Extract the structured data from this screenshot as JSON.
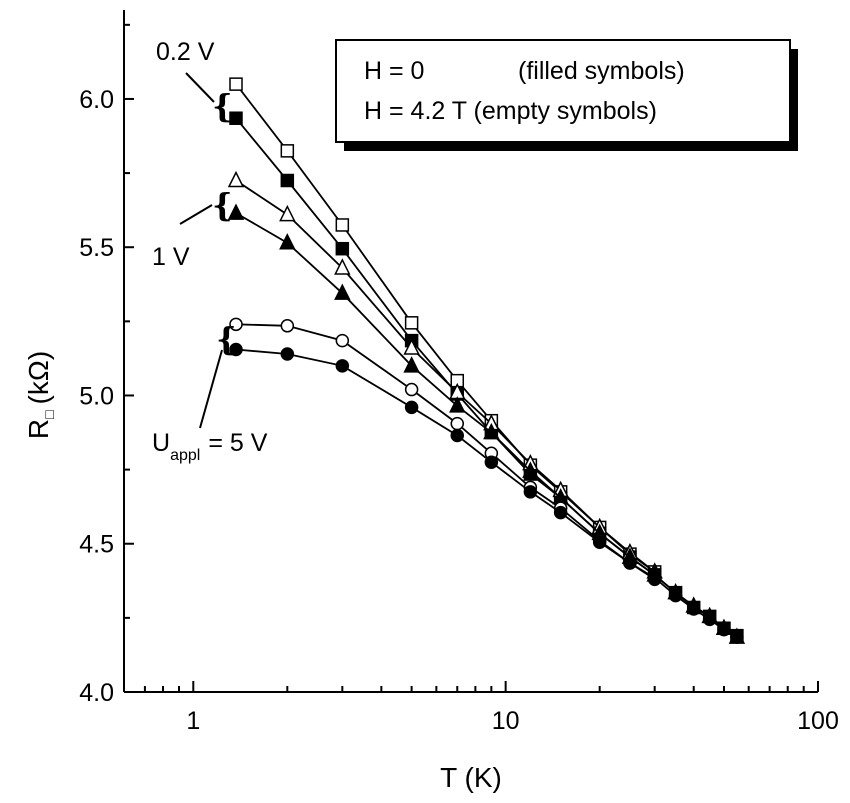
{
  "chart_data": {
    "type": "line",
    "title": "",
    "x_scale": "log",
    "xlim": [
      0.6,
      100
    ],
    "ylim": [
      4.0,
      6.3
    ],
    "xlabel": "T (K)",
    "ylabel_main": "R",
    "ylabel_sub": "□",
    "ylabel_unit": "(kΩ)",
    "x_ticks": [
      {
        "value": 1,
        "label": "1"
      },
      {
        "value": 10,
        "label": "10"
      },
      {
        "value": 100,
        "label": "100"
      }
    ],
    "y_ticks": [
      {
        "value": 4.0,
        "label": "4.0"
      },
      {
        "value": 4.5,
        "label": "4.5"
      },
      {
        "value": 5.0,
        "label": "5.0"
      },
      {
        "value": 5.5,
        "label": "5.5"
      },
      {
        "value": 6.0,
        "label": "6.0"
      }
    ],
    "legend": {
      "line1_left": "H = 0",
      "line1_right": "(filled symbols)",
      "line2": "H = 4.2 T (empty symbols)",
      "placement": "top-right"
    },
    "annotations": {
      "v02": "0.2 V",
      "v1": "1 V",
      "u_main": "U",
      "u_sub": "appl",
      "u_rest": "= 5 V",
      "brace": "{"
    },
    "series": [
      {
        "marker": "square",
        "filled": false,
        "x": [
          1.37,
          2,
          3,
          5,
          7,
          9,
          12,
          15,
          20,
          25,
          30
        ],
        "y": [
          6.05,
          5.825,
          5.575,
          5.245,
          5.05,
          4.915,
          4.765,
          4.675,
          4.555,
          4.465,
          4.405
        ]
      },
      {
        "marker": "square",
        "filled": true,
        "x": [
          1.37,
          2,
          3,
          5,
          7,
          9,
          12,
          15,
          20,
          25,
          30,
          35,
          40,
          45,
          50,
          55
        ],
        "y": [
          5.935,
          5.725,
          5.495,
          5.185,
          5.005,
          4.875,
          4.735,
          4.655,
          4.535,
          4.455,
          4.395,
          4.335,
          4.285,
          4.255,
          4.215,
          4.19
        ]
      },
      {
        "marker": "triangle",
        "filled": false,
        "x": [
          1.37,
          2,
          3,
          5,
          7,
          9,
          12,
          15,
          20,
          25,
          30
        ],
        "y": [
          5.725,
          5.61,
          5.43,
          5.16,
          5.01,
          4.905,
          4.77,
          4.68,
          4.555,
          4.47,
          4.405
        ]
      },
      {
        "marker": "triangle",
        "filled": true,
        "x": [
          1.37,
          2,
          3,
          5,
          7,
          9,
          12,
          15,
          20,
          25,
          30,
          35,
          40,
          45,
          50,
          55
        ],
        "y": [
          5.615,
          5.515,
          5.345,
          5.1,
          4.965,
          4.875,
          4.745,
          4.655,
          4.535,
          4.455,
          4.395,
          4.335,
          4.29,
          4.255,
          4.215,
          4.185
        ]
      },
      {
        "marker": "circle",
        "filled": false,
        "x": [
          1.37,
          2,
          3,
          5,
          7,
          9,
          12,
          15,
          20,
          25,
          30
        ],
        "y": [
          5.24,
          5.235,
          5.185,
          5.02,
          4.905,
          4.805,
          4.69,
          4.62,
          4.51,
          4.435,
          4.38
        ]
      },
      {
        "marker": "circle",
        "filled": true,
        "x": [
          1.37,
          2,
          3,
          5,
          7,
          9,
          12,
          15,
          20,
          25,
          30,
          35,
          40,
          45,
          50,
          55
        ],
        "y": [
          5.155,
          5.14,
          5.1,
          4.96,
          4.865,
          4.775,
          4.675,
          4.605,
          4.505,
          4.435,
          4.385,
          4.325,
          4.28,
          4.245,
          4.21,
          4.185
        ]
      }
    ]
  }
}
